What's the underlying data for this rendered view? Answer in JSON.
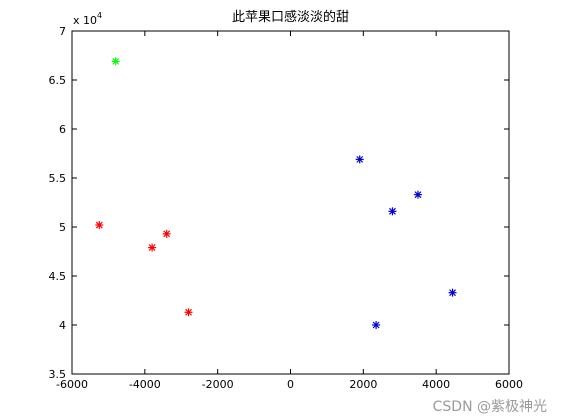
{
  "chart_data": {
    "type": "scatter",
    "title": "此苹果口感淡淡的甜",
    "xlabel": "",
    "ylabel": "",
    "xlim": [
      -6000,
      6000
    ],
    "ylim": [
      35000,
      70000
    ],
    "y_exponent_label": "x 10",
    "y_exponent_power": "4",
    "x_ticks": [
      -6000,
      -4000,
      -2000,
      0,
      2000,
      4000,
      6000
    ],
    "x_tick_labels": [
      "-6000",
      "-4000",
      "-2000",
      "0",
      "2000",
      "4000",
      "6000"
    ],
    "y_ticks": [
      35000,
      40000,
      45000,
      50000,
      55000,
      60000,
      65000,
      70000
    ],
    "y_tick_labels": [
      "3.5",
      "4",
      "4.5",
      "5",
      "5.5",
      "6",
      "6.5",
      "7"
    ],
    "grid": false,
    "marker": "*",
    "series": [
      {
        "color": "#ff0000",
        "points": [
          [
            -5250,
            50200
          ],
          [
            -3800,
            47900
          ],
          [
            -3400,
            49300
          ],
          [
            -2800,
            41300
          ]
        ]
      },
      {
        "color": "#0000cc",
        "points": [
          [
            1900,
            56900
          ],
          [
            2350,
            40000
          ],
          [
            2800,
            51600
          ],
          [
            3500,
            53300
          ],
          [
            4450,
            43300
          ]
        ]
      },
      {
        "color": "#00ff00",
        "points": [
          [
            -4800,
            66900
          ]
        ]
      }
    ]
  },
  "watermark": "CSDN @紫极神光"
}
